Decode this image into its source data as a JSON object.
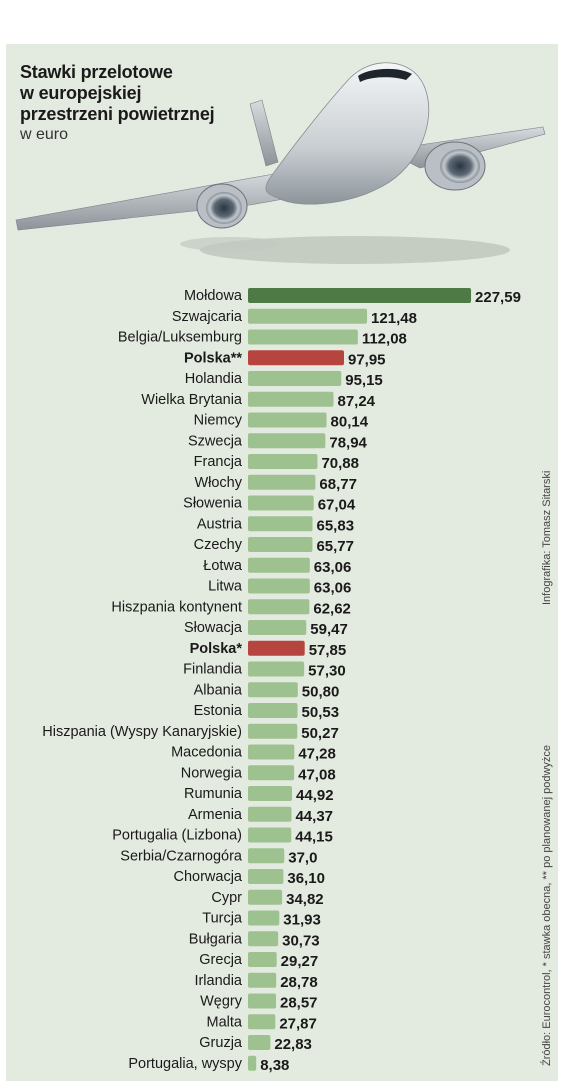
{
  "header": {
    "title_lines": [
      "Stawki przelotowe",
      "w europejskiej",
      "przestrzeni powietrznej"
    ],
    "unit": "w euro"
  },
  "credit": "Infografika: Tomasz Sitarski",
  "source": "Źródło: Eurocontrol, * stawka obecna, ** po planowanej podwyżce",
  "colors": {
    "panel": "#e3eadf",
    "bar_default": "#9dc28f",
    "bar_top": "#4e7a45",
    "bar_highlight": "#b5453e"
  },
  "chart_data": {
    "type": "bar",
    "orientation": "horizontal",
    "title": "Stawki przelotowe w europejskiej przestrzeni powietrznej",
    "unit": "w euro",
    "categories": [
      "Mołdowa",
      "Szwajcaria",
      "Belgia/Luksemburg",
      "Polska**",
      "Holandia",
      "Wielka Brytania",
      "Niemcy",
      "Szwecja",
      "Francja",
      "Włochy",
      "Słowenia",
      "Austria",
      "Czechy",
      "Łotwa",
      "Litwa",
      "Hiszpania kontynent",
      "Słowacja",
      "Polska*",
      "Finlandia",
      "Albania",
      "Estonia",
      "Hiszpania (Wyspy Kanaryjskie)",
      "Macedonia",
      "Norwegia",
      "Rumunia",
      "Armenia",
      "Portugalia (Lizbona)",
      "Serbia/Czarnogóra",
      "Chorwacja",
      "Cypr",
      "Turcja",
      "Bułgaria",
      "Grecja",
      "Irlandia",
      "Węgry",
      "Malta",
      "Gruzja",
      "Portugalia, wyspy"
    ],
    "values": [
      227.59,
      121.48,
      112.08,
      97.95,
      95.15,
      87.24,
      80.14,
      78.94,
      70.88,
      68.77,
      67.04,
      65.83,
      65.77,
      63.06,
      63.06,
      62.62,
      59.47,
      57.85,
      57.3,
      50.8,
      50.53,
      50.27,
      47.28,
      47.08,
      44.92,
      44.37,
      44.15,
      37.0,
      36.1,
      34.82,
      31.93,
      30.73,
      29.27,
      28.78,
      28.57,
      27.87,
      22.83,
      8.38
    ],
    "value_labels": [
      "227,59",
      "121,48",
      "112,08",
      "97,95",
      "95,15",
      "87,24",
      "80,14",
      "78,94",
      "70,88",
      "68,77",
      "67,04",
      "65,83",
      "65,77",
      "63,06",
      "63,06",
      "62,62",
      "59,47",
      "57,85",
      "57,30",
      "50,80",
      "50,53",
      "50,27",
      "47,28",
      "47,08",
      "44,92",
      "44,37",
      "44,15",
      "37,0",
      "36,10",
      "34,82",
      "31,93",
      "30,73",
      "29,27",
      "28,78",
      "28,57",
      "27,87",
      "22,83",
      "8,38"
    ],
    "highlight": [
      "Polska**",
      "Polska*"
    ],
    "top_category": "Mołdowa"
  }
}
